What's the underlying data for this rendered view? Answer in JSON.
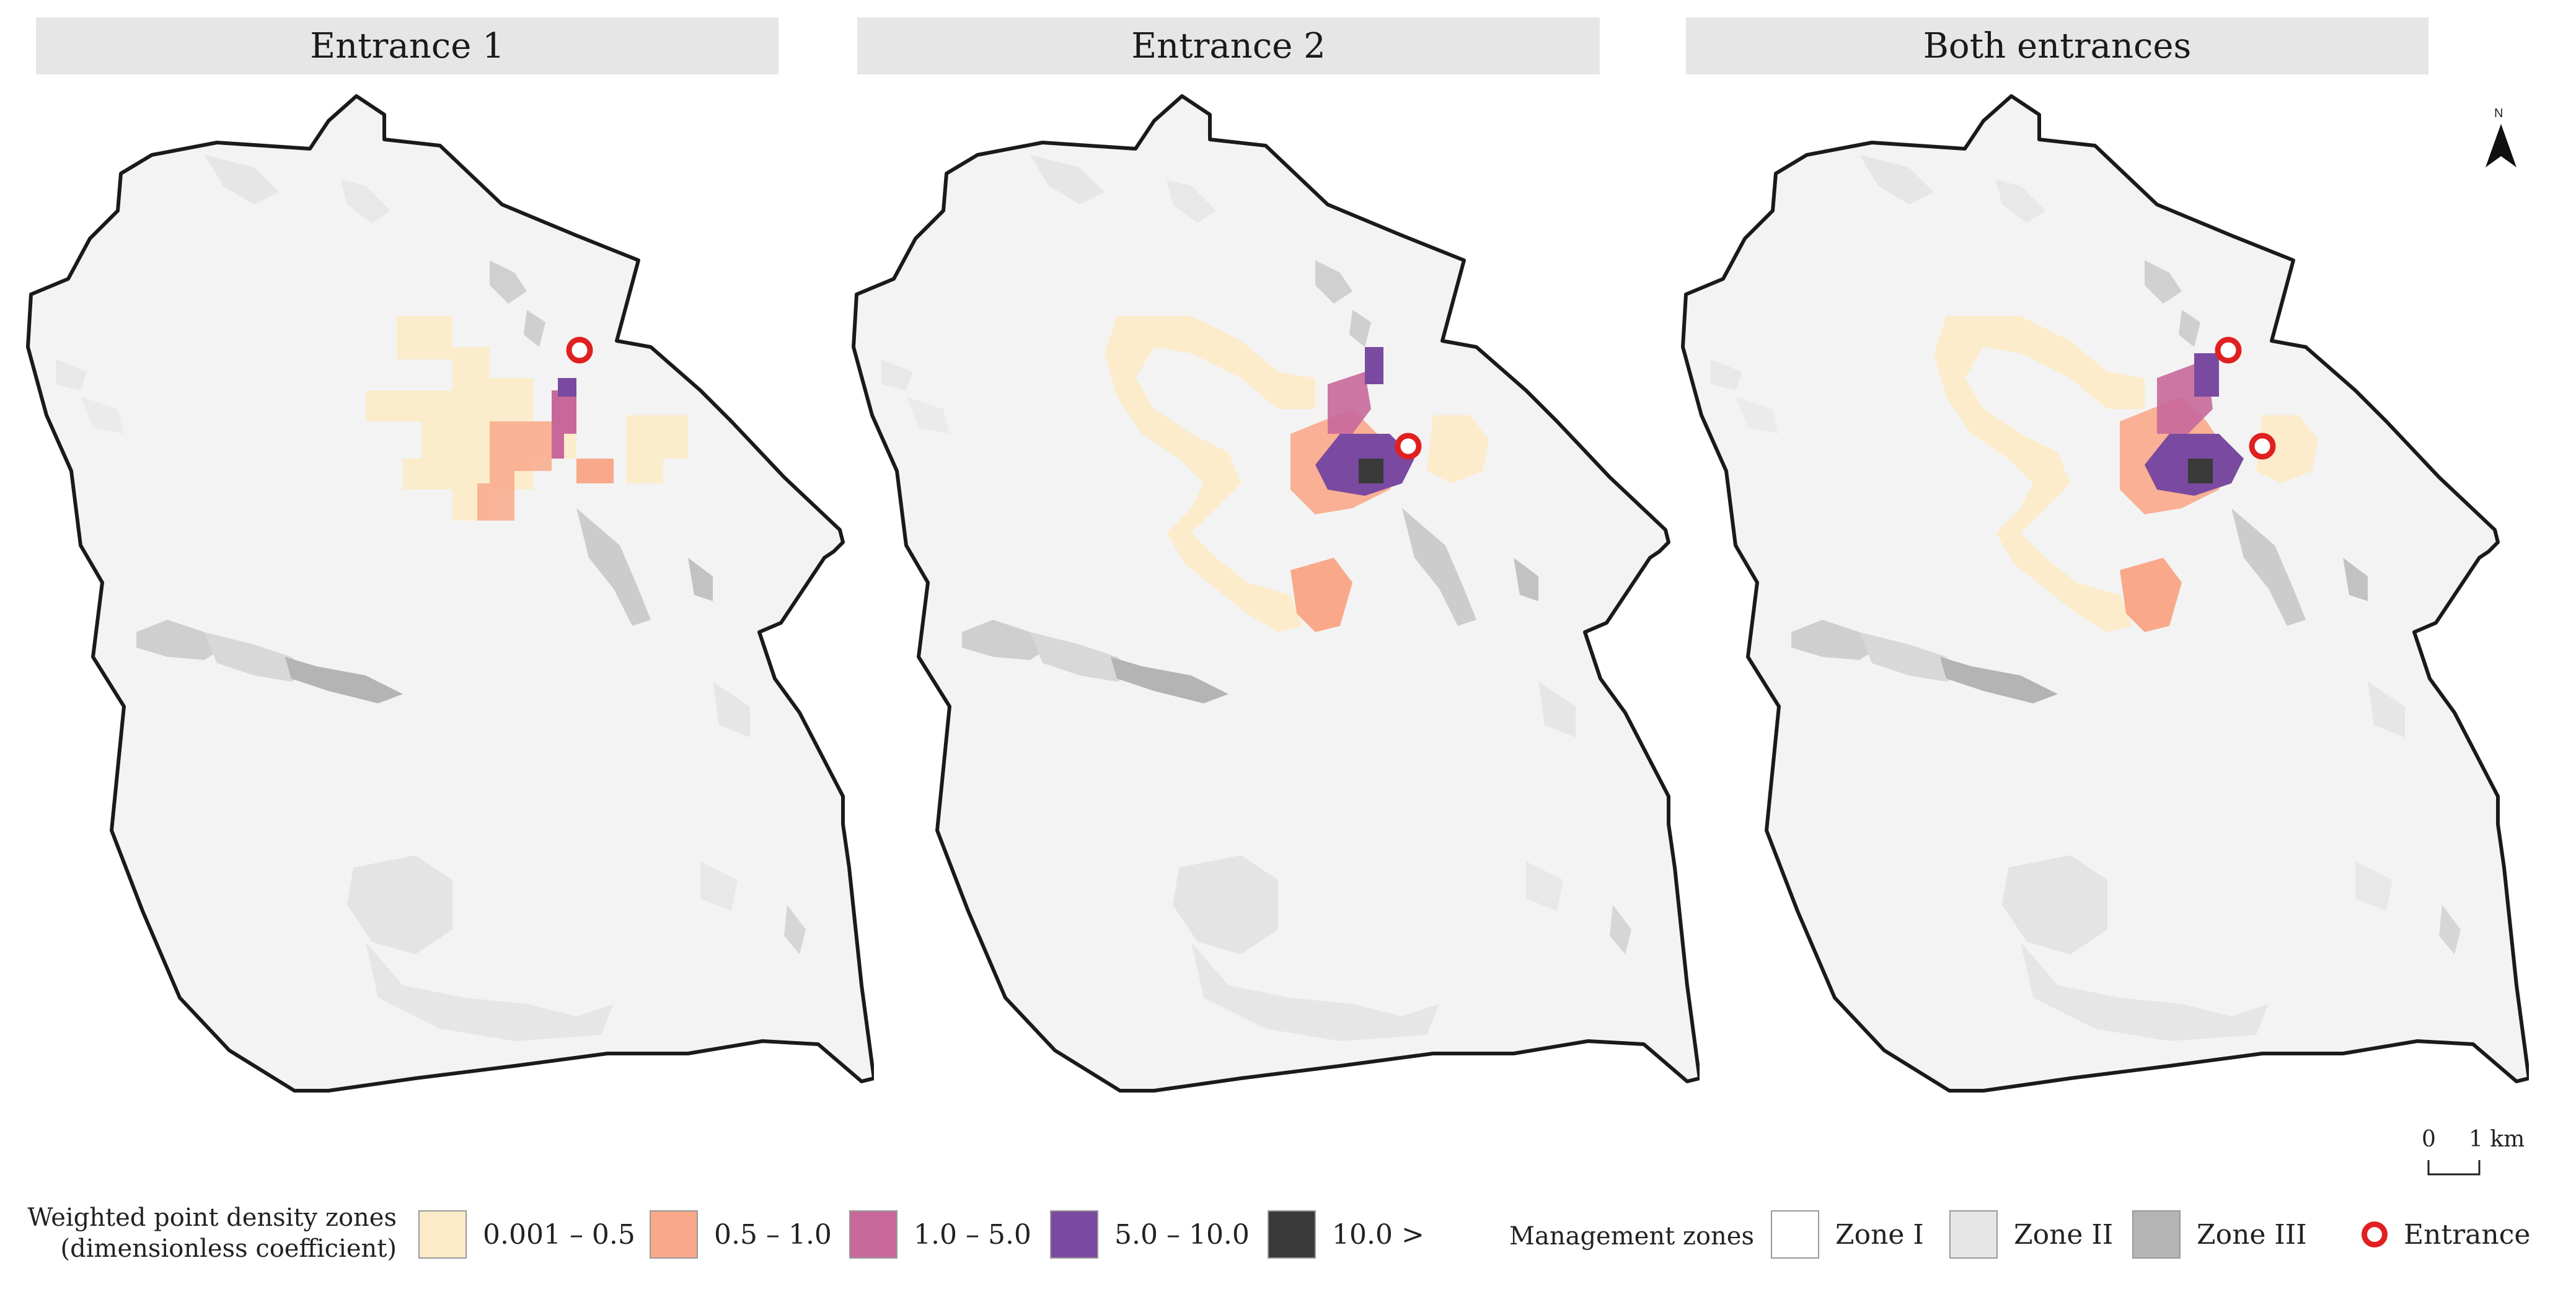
{
  "panels": [
    {
      "title": "Entrance 1"
    },
    {
      "title": "Entrance 2"
    },
    {
      "title": "Both entrances"
    }
  ],
  "north_arrow": {
    "label": "N"
  },
  "scale_bar": {
    "zero": "0",
    "distance": "1 km"
  },
  "density_legend": {
    "title_line1": "Weighted point density zones",
    "title_line2": "(dimensionless coefficient)",
    "classes": [
      {
        "label": "0.001 – 0.5",
        "color": "#fcebc8"
      },
      {
        "label": "0.5 – 1.0",
        "color": "#f9a98a"
      },
      {
        "label": "1.0 – 5.0",
        "color": "#c8689a"
      },
      {
        "label": "5.0 – 10.0",
        "color": "#7a4aa0"
      },
      {
        "label": "10.0 >",
        "color": "#3a3a3a"
      }
    ]
  },
  "management_legend": {
    "title": "Management zones",
    "zones": [
      {
        "label": "Zone I",
        "color": "#ffffff"
      },
      {
        "label": "Zone II",
        "color": "#e6e6e6"
      },
      {
        "label": "Zone III",
        "color": "#b4b4b4"
      }
    ],
    "entrance_label": "Entrance",
    "entrance_color": "#e02020"
  }
}
